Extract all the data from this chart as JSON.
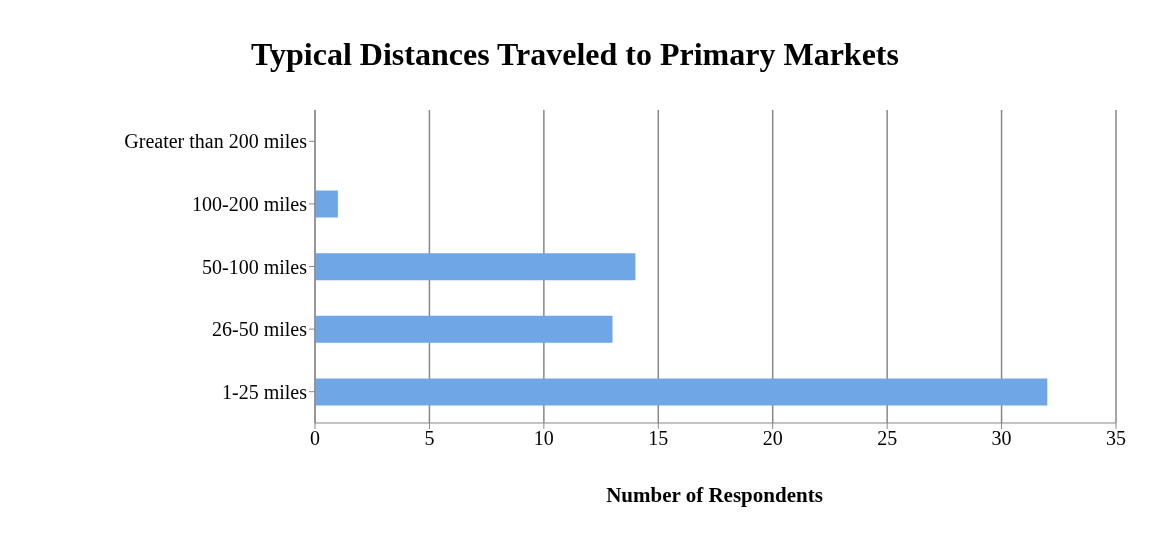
{
  "chart_data": {
    "type": "bar",
    "orientation": "horizontal",
    "title": "Typical Distances Traveled to Primary Markets",
    "xlabel": "Number of Respondents",
    "categories": [
      "Greater than 200 miles",
      "100-200 miles",
      "50-100 miles",
      "26-50 miles",
      "1-25 miles"
    ],
    "values": [
      0,
      1,
      14,
      13,
      32
    ],
    "color": "#6ea6e6",
    "xlim": [
      0,
      35
    ],
    "xticks": [
      0,
      5,
      10,
      15,
      20,
      25,
      30,
      35
    ],
    "grid": "x"
  }
}
